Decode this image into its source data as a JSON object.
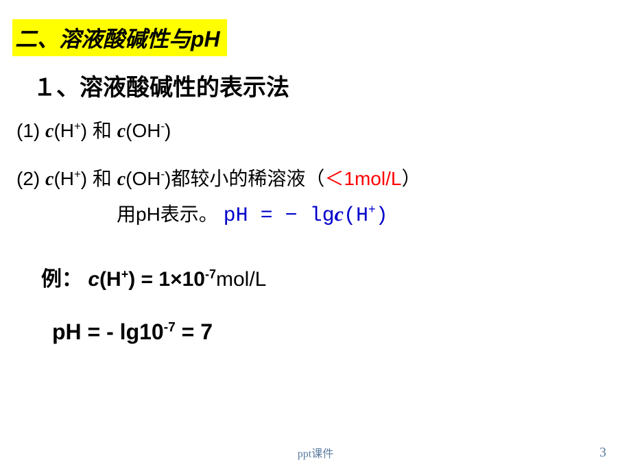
{
  "title": "二、溶液酸碱性与pH",
  "section1": "１、溶液酸碱性的表示法",
  "point1_prefix": "(1) ",
  "point1_c1_var": "c",
  "point1_c1_body": "(H",
  "point1_c1_sup": "+",
  "point1_c1_close": ")",
  "point1_and": " 和 ",
  "point1_c2_var": "c",
  "point1_c2_body": "(OH",
  "point1_c2_sup": "-",
  "point1_c2_close": ")",
  "point2_prefix": "(2) ",
  "point2_c1_var": "c",
  "point2_c1_body": "(H",
  "point2_c1_sup": "+",
  "point2_c1_close": ")",
  "point2_and": " 和 ",
  "point2_c2_var": "c",
  "point2_c2_body": "(OH",
  "point2_c2_sup": "-",
  "point2_c2_close": ")",
  "point2_tail": "都较小的稀溶液（",
  "point2_red": "＜1mol/L",
  "point2_end": "）",
  "point2_line2a": "用pH表示。",
  "formula_pre": "pH = − lg",
  "formula_c": "c",
  "formula_body": "(H",
  "formula_sup": "+",
  "formula_close": ")",
  "example_label": "例：",
  "example_c": "c",
  "example_body1": "(H",
  "example_sup1": "+",
  "example_body2": ") = 1×10",
  "example_sup2": "-7",
  "example_unit": "mol/L",
  "result_a": "pH = - lg10",
  "result_sup": "-7",
  "result_b": " = 7",
  "footer": "ppt课件",
  "page": "3",
  "colors": {
    "highlight_bg": "#ffff00",
    "text": "#000000",
    "red": "#ff0000",
    "blue": "#0000cc",
    "footer": "#5b7ca0",
    "background": "#ffffff"
  }
}
